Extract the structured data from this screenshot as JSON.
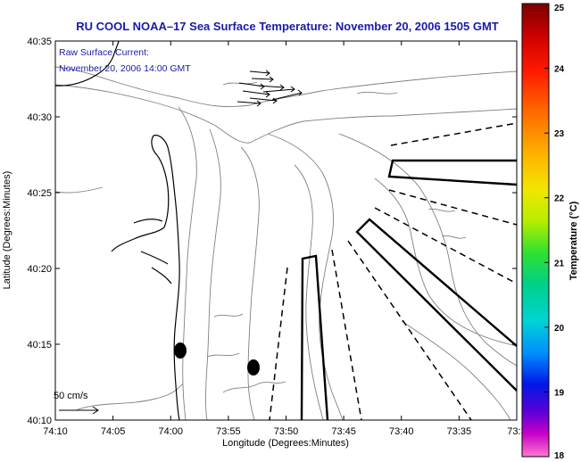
{
  "title": "RU COOL  NOAA–17  Sea Surface Temperature:  November 20, 2006 1505 GMT",
  "annotation": {
    "line1": "Raw Surface Current:",
    "line2": "November 20, 2006 14:00 GMT"
  },
  "axes": {
    "xlabel": "Longitude (Degrees:Minutes)",
    "ylabel": "Latitude (Degrees:Minutes)",
    "xticks": [
      "74:10",
      "74:05",
      "74:00",
      "73:55",
      "73:50",
      "73:45",
      "73:40",
      "73:35",
      "73:3"
    ],
    "yticks": [
      "40:35",
      "40:30",
      "40:25",
      "40:20",
      "40:15",
      "40:10"
    ]
  },
  "scale": {
    "label": "50 cm/s"
  },
  "colorbar": {
    "label": "Temperature (°C)",
    "ticks": [
      "25",
      "24",
      "23",
      "22",
      "21",
      "20",
      "19",
      "18"
    ],
    "min": 18,
    "max": 25
  },
  "colors": {
    "title": "#1a1aa8",
    "coast": "#000000",
    "bathymetry": "#808080",
    "footprint": "#000000"
  }
}
